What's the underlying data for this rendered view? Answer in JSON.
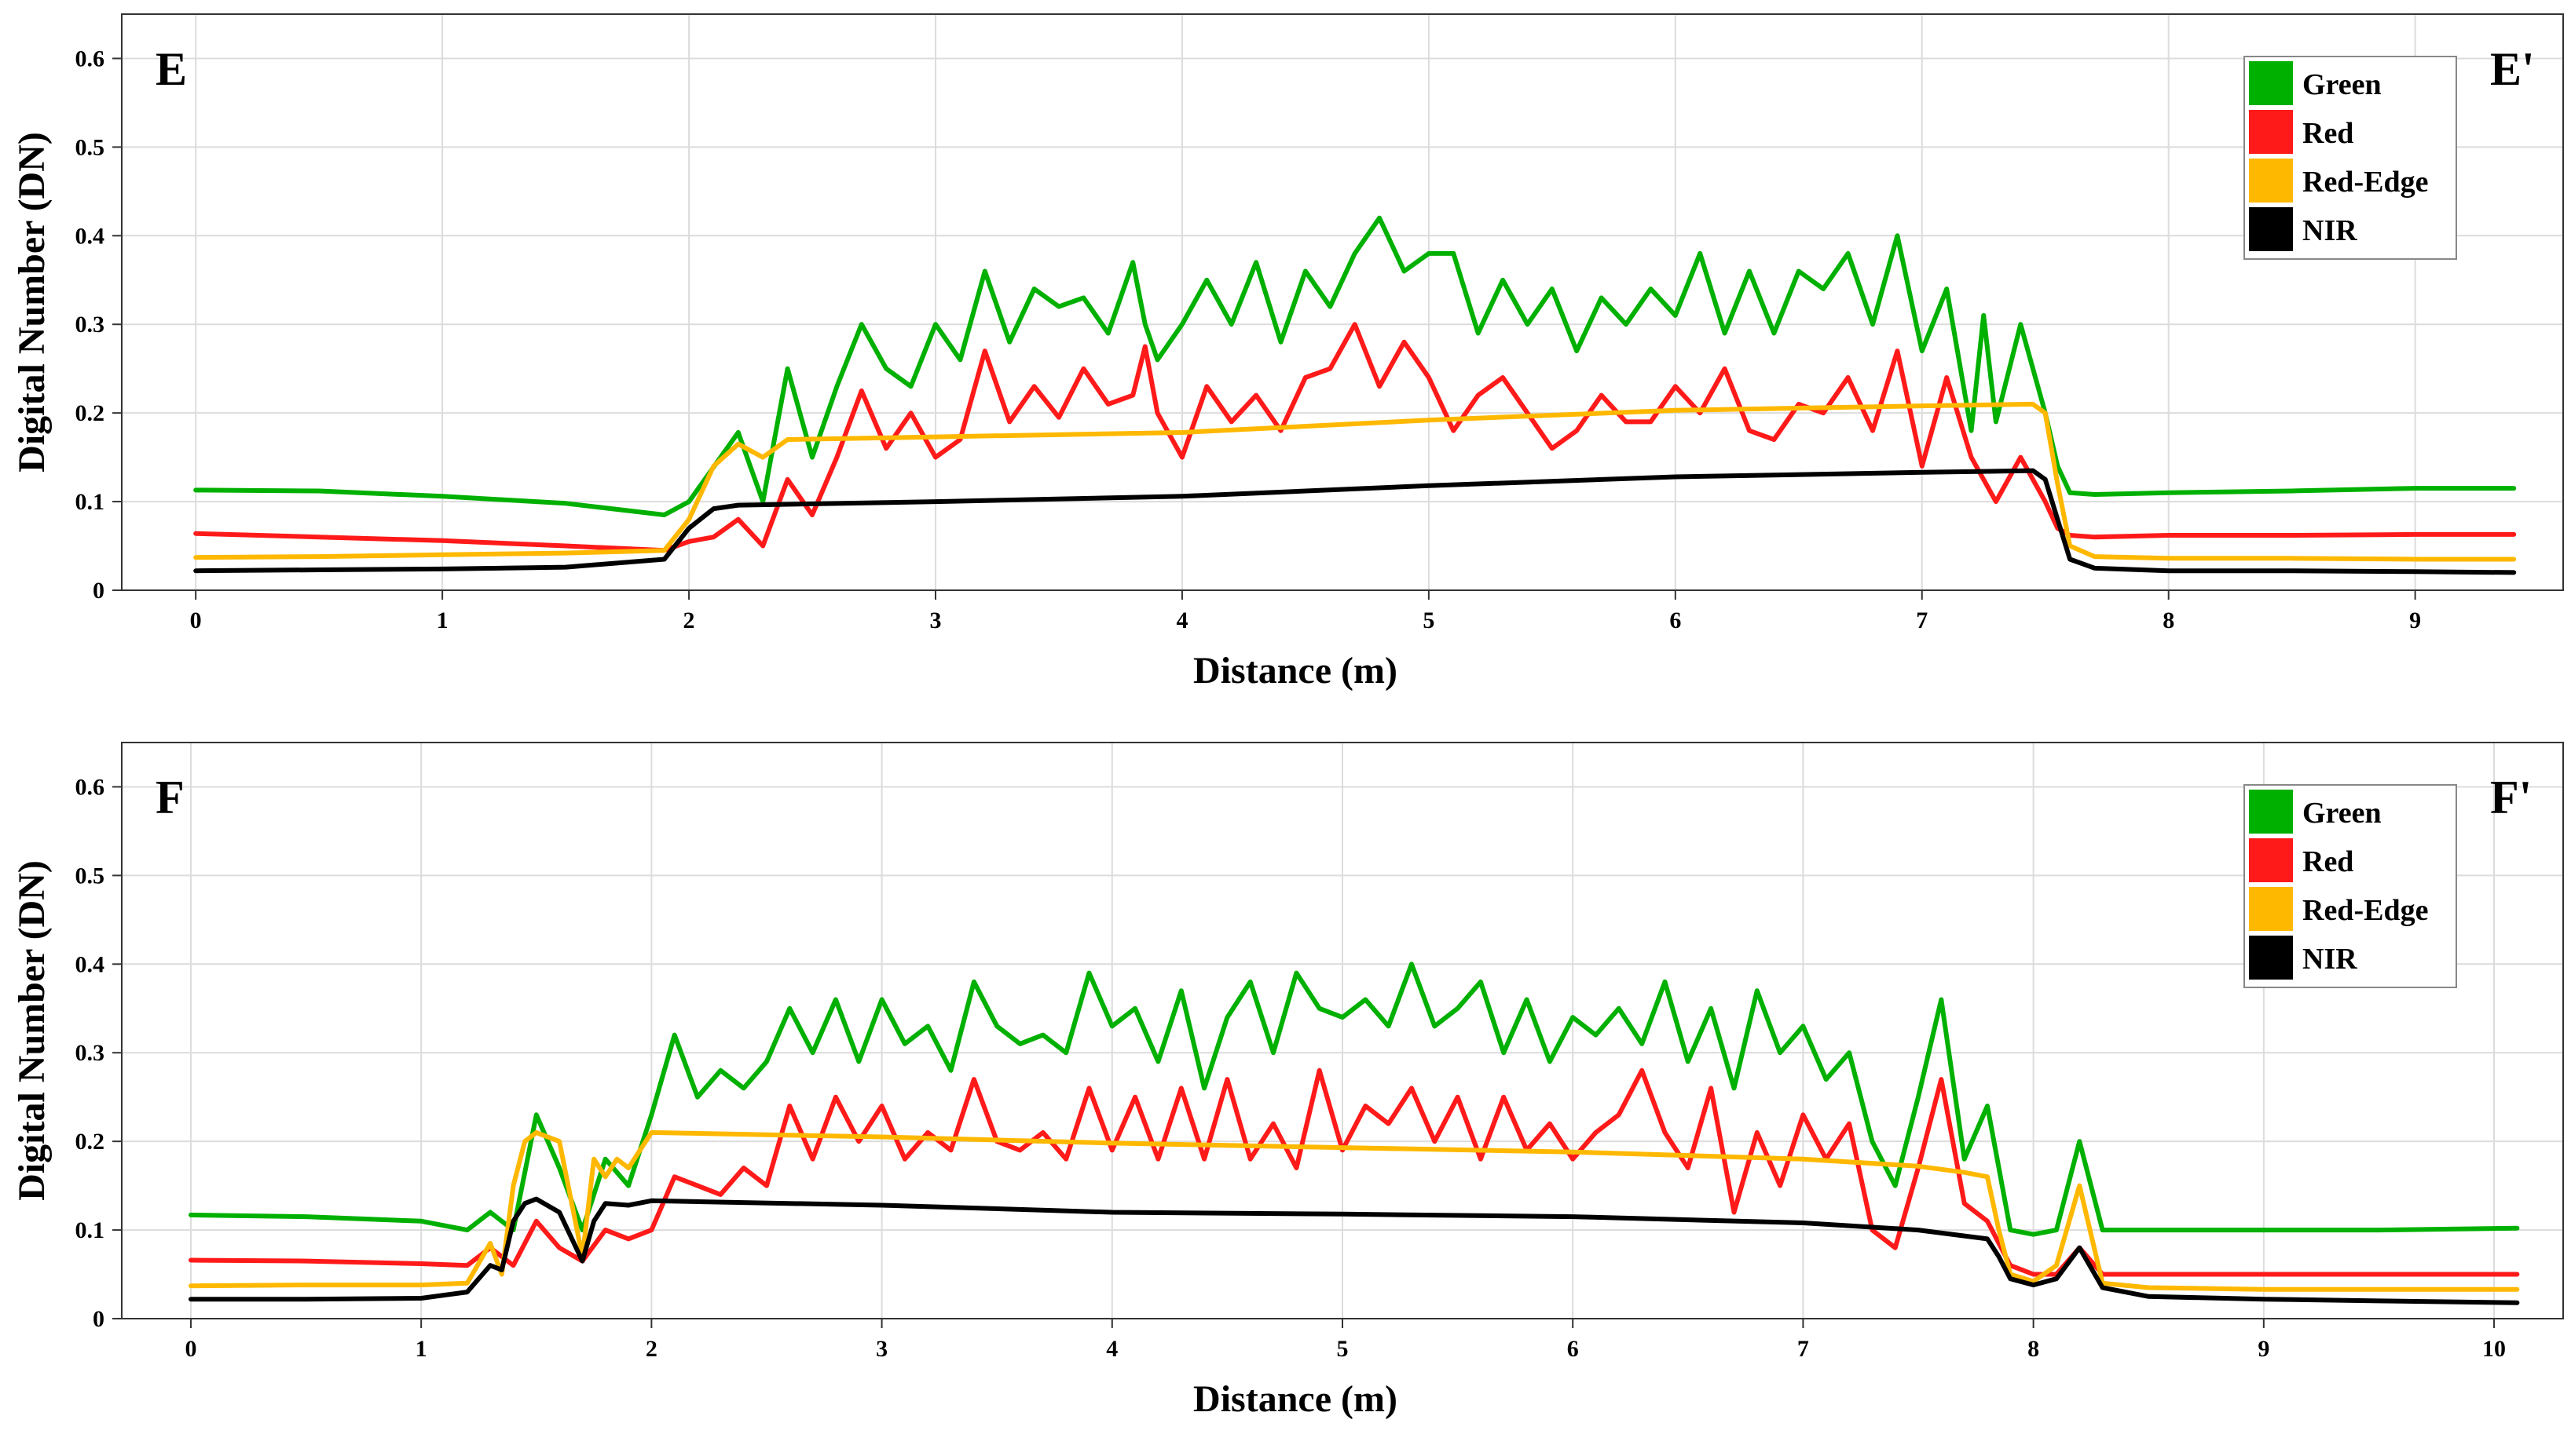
{
  "chart_data": [
    {
      "type": "line",
      "panel_label_left": "E",
      "panel_label_right": "E'",
      "xlabel": "Distance (m)",
      "ylabel": "Digital Number (DN)",
      "xlim": [
        -0.3,
        9.6
      ],
      "ylim": [
        0,
        0.65
      ],
      "xticks": [
        0,
        1,
        2,
        3,
        4,
        5,
        6,
        7,
        8,
        9
      ],
      "yticks": [
        0,
        0.1,
        0.2,
        0.3,
        0.4,
        0.5,
        0.6
      ],
      "legend_position": "top-right",
      "series": [
        {
          "name": "Green",
          "color": "#00b000",
          "x": [
            0,
            0.5,
            1,
            1.5,
            1.9,
            2.0,
            2.2,
            2.3,
            2.4,
            2.5,
            2.6,
            2.7,
            2.8,
            2.9,
            3.0,
            3.1,
            3.2,
            3.3,
            3.4,
            3.5,
            3.6,
            3.7,
            3.8,
            3.85,
            3.9,
            4.0,
            4.1,
            4.2,
            4.3,
            4.4,
            4.5,
            4.6,
            4.7,
            4.8,
            4.9,
            5.0,
            5.1,
            5.2,
            5.3,
            5.4,
            5.5,
            5.6,
            5.7,
            5.8,
            5.9,
            6.0,
            6.1,
            6.2,
            6.3,
            6.4,
            6.5,
            6.6,
            6.7,
            6.8,
            6.9,
            7.0,
            7.1,
            7.2,
            7.25,
            7.3,
            7.4,
            7.5,
            7.55,
            7.6,
            7.7,
            8,
            8.5,
            9,
            9.4
          ],
          "y": [
            0.113,
            0.112,
            0.106,
            0.098,
            0.085,
            0.1,
            0.178,
            0.1,
            0.25,
            0.15,
            0.23,
            0.3,
            0.25,
            0.23,
            0.3,
            0.26,
            0.36,
            0.28,
            0.34,
            0.32,
            0.33,
            0.29,
            0.37,
            0.3,
            0.26,
            0.3,
            0.35,
            0.3,
            0.37,
            0.28,
            0.36,
            0.32,
            0.38,
            0.42,
            0.36,
            0.38,
            0.38,
            0.29,
            0.35,
            0.3,
            0.34,
            0.27,
            0.33,
            0.3,
            0.34,
            0.31,
            0.38,
            0.29,
            0.36,
            0.29,
            0.36,
            0.34,
            0.38,
            0.3,
            0.4,
            0.27,
            0.34,
            0.18,
            0.31,
            0.19,
            0.3,
            0.2,
            0.14,
            0.11,
            0.108,
            0.11,
            0.112,
            0.115,
            0.115
          ]
        },
        {
          "name": "Red",
          "color": "#ff1a1a",
          "x": [
            0,
            0.5,
            1,
            1.5,
            1.9,
            2.0,
            2.1,
            2.2,
            2.3,
            2.4,
            2.5,
            2.6,
            2.7,
            2.8,
            2.9,
            3.0,
            3.1,
            3.2,
            3.3,
            3.4,
            3.5,
            3.6,
            3.7,
            3.8,
            3.85,
            3.9,
            4.0,
            4.1,
            4.2,
            4.3,
            4.4,
            4.5,
            4.6,
            4.7,
            4.8,
            4.9,
            5.0,
            5.1,
            5.2,
            5.3,
            5.4,
            5.5,
            5.6,
            5.7,
            5.8,
            5.9,
            6.0,
            6.1,
            6.2,
            6.3,
            6.4,
            6.5,
            6.6,
            6.7,
            6.8,
            6.9,
            7.0,
            7.1,
            7.2,
            7.3,
            7.4,
            7.5,
            7.55,
            7.6,
            7.7,
            8,
            8.5,
            9,
            9.4
          ],
          "y": [
            0.064,
            0.06,
            0.056,
            0.05,
            0.045,
            0.055,
            0.06,
            0.08,
            0.05,
            0.125,
            0.085,
            0.15,
            0.225,
            0.16,
            0.2,
            0.15,
            0.17,
            0.27,
            0.19,
            0.23,
            0.195,
            0.25,
            0.21,
            0.22,
            0.275,
            0.2,
            0.15,
            0.23,
            0.19,
            0.22,
            0.18,
            0.24,
            0.25,
            0.3,
            0.23,
            0.28,
            0.24,
            0.18,
            0.22,
            0.24,
            0.2,
            0.16,
            0.18,
            0.22,
            0.19,
            0.19,
            0.23,
            0.2,
            0.25,
            0.18,
            0.17,
            0.21,
            0.2,
            0.24,
            0.18,
            0.27,
            0.14,
            0.24,
            0.15,
            0.1,
            0.15,
            0.1,
            0.07,
            0.062,
            0.06,
            0.062,
            0.062,
            0.063,
            0.063
          ]
        },
        {
          "name": "Red-Edge",
          "color": "#ffb800",
          "x": [
            0,
            0.5,
            1,
            1.5,
            1.9,
            2.0,
            2.1,
            2.2,
            2.3,
            2.4,
            3,
            4,
            5,
            6,
            7,
            7.45,
            7.5,
            7.55,
            7.6,
            7.7,
            8,
            8.5,
            9,
            9.4
          ],
          "y": [
            0.037,
            0.038,
            0.04,
            0.042,
            0.045,
            0.08,
            0.14,
            0.165,
            0.15,
            0.17,
            0.173,
            0.178,
            0.192,
            0.203,
            0.208,
            0.21,
            0.2,
            0.12,
            0.05,
            0.038,
            0.036,
            0.036,
            0.035,
            0.035
          ]
        },
        {
          "name": "NIR",
          "color": "#000000",
          "x": [
            0,
            0.5,
            1,
            1.5,
            1.9,
            2.0,
            2.1,
            2.2,
            3,
            4,
            5,
            6,
            7,
            7.45,
            7.5,
            7.55,
            7.6,
            7.7,
            8,
            8.5,
            9,
            9.4
          ],
          "y": [
            0.022,
            0.023,
            0.024,
            0.026,
            0.035,
            0.07,
            0.092,
            0.096,
            0.1,
            0.106,
            0.118,
            0.128,
            0.133,
            0.135,
            0.125,
            0.08,
            0.035,
            0.025,
            0.022,
            0.022,
            0.021,
            0.02
          ]
        }
      ]
    },
    {
      "type": "line",
      "panel_label_left": "F",
      "panel_label_right": "F'",
      "xlabel": "Distance (m)",
      "ylabel": "Digital Number (DN)",
      "xlim": [
        -0.3,
        10.3
      ],
      "ylim": [
        0,
        0.65
      ],
      "xticks": [
        0,
        1,
        2,
        3,
        4,
        5,
        6,
        7,
        8,
        9,
        10
      ],
      "yticks": [
        0,
        0.1,
        0.2,
        0.3,
        0.4,
        0.5,
        0.6
      ],
      "legend_position": "top-right",
      "series": [
        {
          "name": "Green",
          "color": "#00b000",
          "x": [
            0,
            0.5,
            1.0,
            1.2,
            1.3,
            1.4,
            1.5,
            1.6,
            1.7,
            1.8,
            1.9,
            2.0,
            2.1,
            2.2,
            2.3,
            2.4,
            2.5,
            2.6,
            2.7,
            2.8,
            2.9,
            3.0,
            3.1,
            3.2,
            3.3,
            3.4,
            3.5,
            3.6,
            3.7,
            3.8,
            3.9,
            4.0,
            4.1,
            4.2,
            4.3,
            4.4,
            4.5,
            4.6,
            4.7,
            4.8,
            4.9,
            5.0,
            5.1,
            5.2,
            5.3,
            5.4,
            5.5,
            5.6,
            5.7,
            5.8,
            5.9,
            6.0,
            6.1,
            6.2,
            6.3,
            6.4,
            6.5,
            6.6,
            6.7,
            6.8,
            6.9,
            7.0,
            7.1,
            7.2,
            7.3,
            7.4,
            7.5,
            7.6,
            7.7,
            7.8,
            7.9,
            8.0,
            8.1,
            8.2,
            8.3,
            8.5,
            9.0,
            9.5,
            10.1
          ],
          "y": [
            0.117,
            0.115,
            0.11,
            0.1,
            0.12,
            0.1,
            0.23,
            0.17,
            0.1,
            0.18,
            0.15,
            0.23,
            0.32,
            0.25,
            0.28,
            0.26,
            0.29,
            0.35,
            0.3,
            0.36,
            0.29,
            0.36,
            0.31,
            0.33,
            0.28,
            0.38,
            0.33,
            0.31,
            0.32,
            0.3,
            0.39,
            0.33,
            0.35,
            0.29,
            0.37,
            0.26,
            0.34,
            0.38,
            0.3,
            0.39,
            0.35,
            0.34,
            0.36,
            0.33,
            0.4,
            0.33,
            0.35,
            0.38,
            0.3,
            0.36,
            0.29,
            0.34,
            0.32,
            0.35,
            0.31,
            0.38,
            0.29,
            0.35,
            0.26,
            0.37,
            0.3,
            0.33,
            0.27,
            0.3,
            0.2,
            0.15,
            0.25,
            0.36,
            0.18,
            0.24,
            0.1,
            0.095,
            0.1,
            0.2,
            0.1,
            0.1,
            0.1,
            0.1,
            0.102
          ]
        },
        {
          "name": "Red",
          "color": "#ff1a1a",
          "x": [
            0,
            0.5,
            1.0,
            1.2,
            1.3,
            1.4,
            1.5,
            1.6,
            1.7,
            1.8,
            1.9,
            2.0,
            2.1,
            2.2,
            2.3,
            2.4,
            2.5,
            2.6,
            2.7,
            2.8,
            2.9,
            3.0,
            3.1,
            3.2,
            3.3,
            3.4,
            3.5,
            3.6,
            3.7,
            3.8,
            3.9,
            4.0,
            4.1,
            4.2,
            4.3,
            4.4,
            4.5,
            4.6,
            4.7,
            4.8,
            4.9,
            5.0,
            5.1,
            5.2,
            5.3,
            5.4,
            5.5,
            5.6,
            5.7,
            5.8,
            5.9,
            6.0,
            6.1,
            6.2,
            6.3,
            6.4,
            6.5,
            6.6,
            6.7,
            6.8,
            6.9,
            7.0,
            7.1,
            7.2,
            7.3,
            7.4,
            7.5,
            7.6,
            7.7,
            7.8,
            7.9,
            8.0,
            8.1,
            8.2,
            8.3,
            8.5,
            9.0,
            9.5,
            10.1
          ],
          "y": [
            0.066,
            0.065,
            0.062,
            0.06,
            0.08,
            0.06,
            0.11,
            0.08,
            0.065,
            0.1,
            0.09,
            0.1,
            0.16,
            0.15,
            0.14,
            0.17,
            0.15,
            0.24,
            0.18,
            0.25,
            0.2,
            0.24,
            0.18,
            0.21,
            0.19,
            0.27,
            0.2,
            0.19,
            0.21,
            0.18,
            0.26,
            0.19,
            0.25,
            0.18,
            0.26,
            0.18,
            0.27,
            0.18,
            0.22,
            0.17,
            0.28,
            0.19,
            0.24,
            0.22,
            0.26,
            0.2,
            0.25,
            0.18,
            0.25,
            0.19,
            0.22,
            0.18,
            0.21,
            0.23,
            0.28,
            0.21,
            0.17,
            0.26,
            0.12,
            0.21,
            0.15,
            0.23,
            0.18,
            0.22,
            0.1,
            0.08,
            0.17,
            0.27,
            0.13,
            0.11,
            0.06,
            0.05,
            0.05,
            0.08,
            0.05,
            0.05,
            0.05,
            0.05,
            0.05
          ]
        },
        {
          "name": "Red-Edge",
          "color": "#ffb800",
          "x": [
            0,
            0.5,
            1.0,
            1.2,
            1.3,
            1.35,
            1.4,
            1.45,
            1.5,
            1.6,
            1.7,
            1.75,
            1.8,
            1.85,
            1.9,
            2.0,
            3,
            4,
            5,
            6,
            7,
            7.5,
            7.7,
            7.8,
            7.85,
            7.9,
            8.0,
            8.1,
            8.2,
            8.3,
            8.5,
            9.0,
            9.5,
            10.1
          ],
          "y": [
            0.037,
            0.038,
            0.038,
            0.04,
            0.085,
            0.05,
            0.15,
            0.2,
            0.21,
            0.2,
            0.07,
            0.18,
            0.16,
            0.18,
            0.17,
            0.21,
            0.205,
            0.198,
            0.193,
            0.188,
            0.18,
            0.172,
            0.165,
            0.16,
            0.1,
            0.05,
            0.042,
            0.06,
            0.15,
            0.04,
            0.035,
            0.033,
            0.033,
            0.033
          ]
        },
        {
          "name": "NIR",
          "color": "#000000",
          "x": [
            0,
            0.5,
            1.0,
            1.2,
            1.3,
            1.35,
            1.4,
            1.45,
            1.5,
            1.6,
            1.7,
            1.75,
            1.8,
            1.9,
            2.0,
            3,
            4,
            5,
            6,
            7,
            7.5,
            7.8,
            7.85,
            7.9,
            8.0,
            8.1,
            8.2,
            8.3,
            8.5,
            9.0,
            9.5,
            10.1
          ],
          "y": [
            0.022,
            0.022,
            0.023,
            0.03,
            0.06,
            0.055,
            0.11,
            0.13,
            0.135,
            0.12,
            0.065,
            0.11,
            0.13,
            0.128,
            0.133,
            0.128,
            0.12,
            0.118,
            0.115,
            0.108,
            0.1,
            0.09,
            0.07,
            0.045,
            0.038,
            0.045,
            0.08,
            0.035,
            0.025,
            0.022,
            0.02,
            0.018
          ]
        }
      ]
    }
  ]
}
